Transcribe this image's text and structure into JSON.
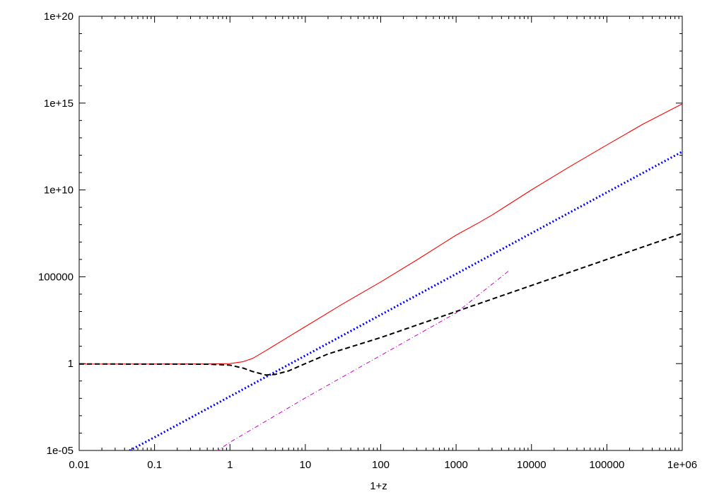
{
  "chart_data": {
    "type": "line",
    "title": "",
    "xlabel": "1+z",
    "ylabel": "",
    "x_scale": "log",
    "y_scale": "log",
    "xlim": [
      0.01,
      1000000
    ],
    "ylim": [
      1e-05,
      1e+20
    ],
    "grid": false,
    "legend": "none",
    "x_ticks": [
      {
        "value": 0.01,
        "label": "0.01"
      },
      {
        "value": 0.1,
        "label": "0.1"
      },
      {
        "value": 1,
        "label": "1"
      },
      {
        "value": 10,
        "label": "10"
      },
      {
        "value": 100,
        "label": "100"
      },
      {
        "value": 1000,
        "label": "1000"
      },
      {
        "value": 10000,
        "label": "10000"
      },
      {
        "value": 100000,
        "label": "100000"
      },
      {
        "value": 1000000,
        "label": "1e+06"
      }
    ],
    "y_ticks": [
      {
        "value": 1e-05,
        "label": "1e-05"
      },
      {
        "value": 1,
        "label": "1"
      },
      {
        "value": 100000,
        "label": "100000"
      },
      {
        "value": 10000000000.0,
        "label": "1e+10"
      },
      {
        "value": 1000000000000000.0,
        "label": "1e+15"
      },
      {
        "value": 1e+20,
        "label": "1e+20"
      }
    ],
    "series": [
      {
        "color": "#ff0000",
        "style": "solid",
        "x": [
          0.01,
          0.1,
          0.5,
          1,
          1.5,
          2,
          3,
          5,
          10,
          30,
          100,
          300,
          1000,
          2000,
          3000,
          5000,
          10000,
          30000,
          100000,
          300000,
          1000000
        ],
        "y": [
          0.95,
          0.95,
          0.96,
          1.0,
          1.3,
          2.0,
          5.6,
          21.8,
          135.0,
          2450.0,
          50400.0,
          920000.0,
          25000000.0,
          130000000.0,
          360000000.0,
          1480000000.0,
          10100000000.0,
          183000000000.0,
          3900000000000.0,
          61000000000000.0,
          900000000000000.0
        ]
      },
      {
        "color": "#0000ff",
        "style": "dotted",
        "x": [
          0.035,
          0.1,
          1,
          10,
          100,
          1000,
          10000,
          100000,
          1000000
        ],
        "y": [
          5.1e-06,
          5.76e-05,
          0.0129,
          2.89,
          646,
          145000.0,
          32400000.0,
          7240000000.0,
          1600000000000.0
        ]
      },
      {
        "color": "#000000",
        "style": "dashed",
        "x": [
          0.01,
          0.1,
          0.5,
          1,
          1.5,
          2,
          3,
          4,
          6,
          10,
          20,
          100,
          1000,
          10000,
          100000,
          1000000
        ],
        "y": [
          0.95,
          0.94,
          0.93,
          0.82,
          0.55,
          0.35,
          0.22,
          0.24,
          0.38,
          1.0,
          3.6,
          31.6,
          1000.0,
          31600.0,
          1000000.0,
          31600000.0
        ]
      },
      {
        "color": "#cc00cc",
        "style": "dash-dot",
        "x": [
          0.65,
          1,
          10,
          100,
          1000,
          5000
        ],
        "y": [
          8.3e-06,
          2.96e-05,
          0.0106,
          2.96,
          829,
          220000.0
        ]
      }
    ]
  }
}
